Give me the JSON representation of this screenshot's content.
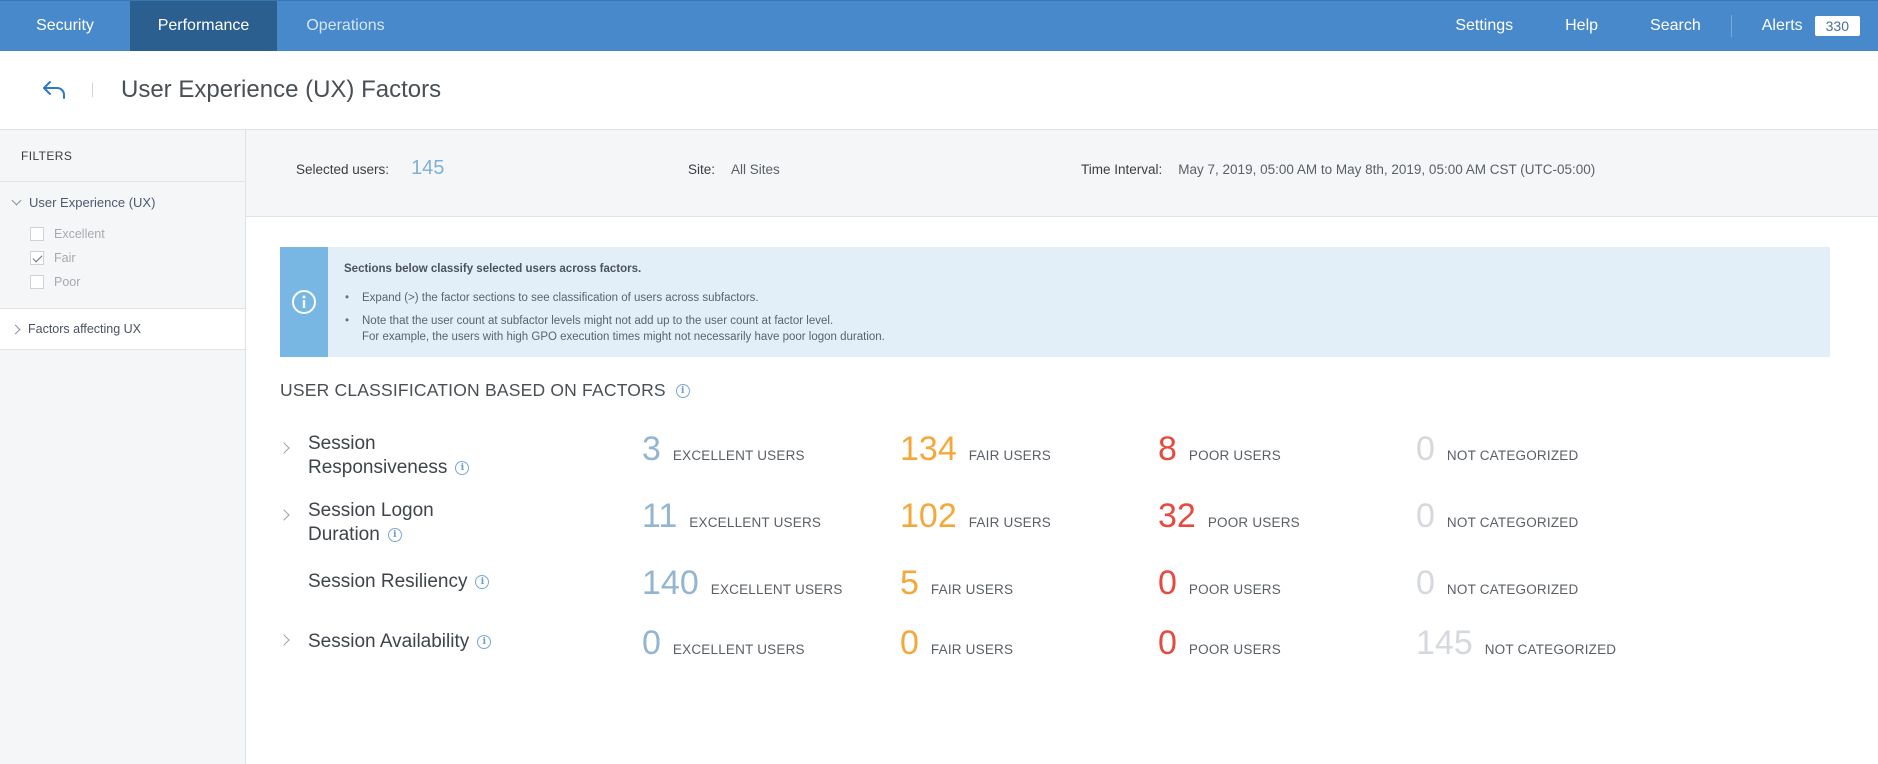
{
  "nav": {
    "tabs": [
      {
        "label": "Security"
      },
      {
        "label": "Performance"
      },
      {
        "label": "Operations"
      }
    ],
    "right_links": [
      "Settings",
      "Help",
      "Search"
    ],
    "alerts_label": "Alerts",
    "alerts_count": "330"
  },
  "page": {
    "title": "User Experience (UX) Factors"
  },
  "sidebar": {
    "filters_heading": "FILTERS",
    "ux_group": {
      "label": "User Experience (UX)",
      "options": [
        {
          "label": "Excellent",
          "checked": false
        },
        {
          "label": "Fair",
          "checked": true
        },
        {
          "label": "Poor",
          "checked": false
        }
      ]
    },
    "factors_group": {
      "label": "Factors affecting UX"
    }
  },
  "infobar": {
    "selected_users_label": "Selected users:",
    "selected_users_value": "145",
    "site_label": "Site:",
    "site_value": "All Sites",
    "time_label": "Time Interval:",
    "time_value": "May 7, 2019, 05:00 AM to May 8th, 2019, 05:00 AM CST (UTC-05:00)"
  },
  "notice": {
    "heading": "Sections below classify selected users across factors.",
    "bullet1": "Expand (>) the factor sections to see classification of users across subfactors.",
    "bullet2_line1": "Note that the user count at subfactor levels might not add up to the user count at factor level.",
    "bullet2_line2": "For example, the users with high GPO execution times might not necessarily have poor logon duration."
  },
  "classification": {
    "heading": "USER CLASSIFICATION BASED ON FACTORS",
    "labels": {
      "excellent": "EXCELLENT USERS",
      "fair": "FAIR USERS",
      "poor": "POOR USERS",
      "not_categorized": "NOT CATEGORIZED"
    },
    "factors": [
      {
        "name_line1": "Session",
        "name_line2": "Responsiveness",
        "excellent": "3",
        "fair": "134",
        "poor": "8",
        "not_categorized": "0"
      },
      {
        "name_line1": "Session Logon",
        "name_line2": "Duration",
        "excellent": "11",
        "fair": "102",
        "poor": "32",
        "not_categorized": "0"
      },
      {
        "name_line1": "Session Resiliency",
        "name_line2": "",
        "excellent": "140",
        "fair": "5",
        "poor": "0",
        "not_categorized": "0"
      },
      {
        "name_line1": "Session Availability",
        "name_line2": "",
        "excellent": "0",
        "fair": "0",
        "poor": "0",
        "not_categorized": "145"
      }
    ]
  },
  "colors": {
    "nav_bg": "#4789cb",
    "nav_active": "#2b5f8f",
    "excellent": "#93b5d0",
    "fair": "#f5a83a",
    "poor": "#e8493e",
    "not_categorized": "#d5d8dc",
    "notice_bg": "#e3eff8",
    "notice_icon_bg": "#78b6e3"
  },
  "icons": [
    "back-arrow-icon",
    "info-icon",
    "chevron-down-icon",
    "chevron-right-icon",
    "checkmark-icon"
  ]
}
